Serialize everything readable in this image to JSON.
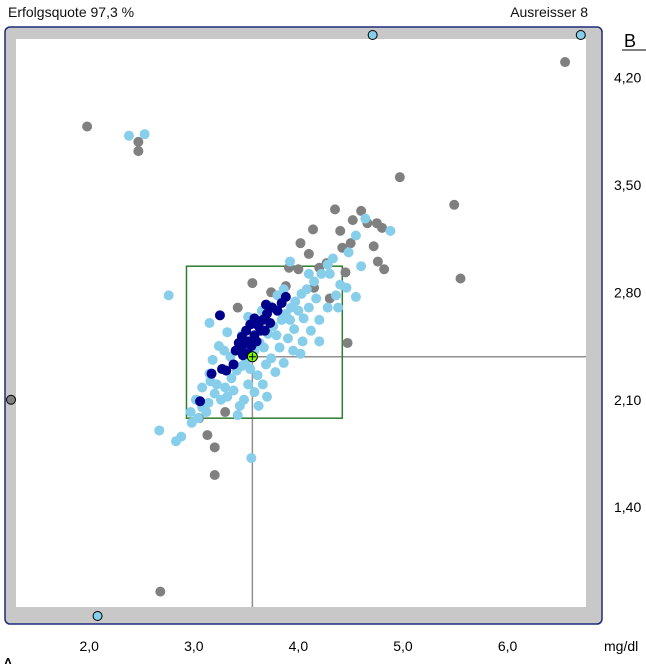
{
  "header": {
    "success_rate": "Erfolgsquote 97,3 %",
    "outliers": "Ausreisser 8"
  },
  "chart_data": {
    "type": "scatter",
    "title": "",
    "xlabel": "A",
    "ylabel": "B",
    "x_unit": "mg/dl",
    "xlim": [
      1.3,
      6.75
    ],
    "ylim": [
      0.75,
      4.45
    ],
    "x_ticks": [
      {
        "v": 2.0,
        "label": "2,0"
      },
      {
        "v": 3.0,
        "label": "3,0"
      },
      {
        "v": 4.0,
        "label": "4,0"
      },
      {
        "v": 5.0,
        "label": "5,0"
      },
      {
        "v": 6.0,
        "label": "6,0"
      }
    ],
    "y_ticks": [
      {
        "v": 4.2,
        "label": "4,20"
      },
      {
        "v": 3.5,
        "label": "3,50"
      },
      {
        "v": 2.8,
        "label": "2,80"
      },
      {
        "v": 2.1,
        "label": "2,10"
      },
      {
        "v": 1.4,
        "label": "1,40"
      }
    ],
    "target": {
      "x": 3.56,
      "y": 2.38
    },
    "acceptance_box": {
      "x": [
        2.93,
        4.42
      ],
      "y": [
        1.98,
        2.97
      ]
    },
    "colors": {
      "frame": "#c8c8c8",
      "frame_border": "#1e2a7a",
      "box": "#2e7d2e",
      "crosshair": "#909090",
      "target": "#7fff00",
      "series_gray": "#808080",
      "series_light": "#87ceeb",
      "series_dark": "#00008b"
    },
    "edge_markers": [
      {
        "side": "top",
        "v": 4.71
      },
      {
        "side": "top",
        "v": 6.7
      },
      {
        "side": "left",
        "v": 2.1
      },
      {
        "side": "bottom",
        "v": 2.08
      }
    ],
    "series": [
      {
        "color": "gray",
        "points": [
          [
            1.98,
            3.88
          ],
          [
            2.47,
            3.78
          ],
          [
            2.47,
            3.72
          ],
          [
            6.55,
            4.3
          ],
          [
            4.97,
            3.55
          ],
          [
            5.49,
            3.37
          ],
          [
            5.55,
            2.89
          ],
          [
            2.68,
            0.85
          ],
          [
            4.47,
            2.47
          ],
          [
            4.02,
            3.12
          ],
          [
            4.14,
            3.21
          ],
          [
            4.35,
            3.34
          ],
          [
            4.1,
            3.05
          ],
          [
            4.4,
            3.2
          ],
          [
            4.42,
            3.09
          ],
          [
            4.6,
            3.33
          ],
          [
            4.75,
            3.25
          ],
          [
            4.72,
            3.1
          ],
          [
            4.8,
            3.22
          ],
          [
            4.76,
            3.0
          ],
          [
            4.82,
            2.95
          ],
          [
            4.45,
            2.93
          ],
          [
            4.27,
            2.99
          ],
          [
            4.5,
            3.12
          ],
          [
            4.66,
            3.25
          ],
          [
            4.52,
            3.27
          ],
          [
            3.91,
            2.96
          ],
          [
            3.88,
            2.84
          ],
          [
            3.74,
            2.8
          ],
          [
            3.56,
            2.86
          ],
          [
            3.42,
            2.7
          ],
          [
            3.13,
            1.87
          ],
          [
            3.2,
            1.79
          ],
          [
            3.2,
            1.61
          ],
          [
            4.15,
            2.83
          ],
          [
            4.2,
            2.96
          ],
          [
            3.05,
            1.98
          ],
          [
            3.3,
            2.02
          ],
          [
            4.0,
            2.95
          ],
          [
            4.3,
            2.76
          ]
        ]
      },
      {
        "color": "light",
        "points": [
          [
            2.38,
            3.82
          ],
          [
            2.53,
            3.83
          ],
          [
            2.67,
            1.9
          ],
          [
            2.83,
            1.83
          ],
          [
            2.88,
            1.86
          ],
          [
            3.55,
            1.72
          ],
          [
            2.97,
            2.02
          ],
          [
            3.08,
            2.05
          ],
          [
            3.14,
            2.08
          ],
          [
            3.2,
            2.14
          ],
          [
            3.22,
            2.2
          ],
          [
            3.3,
            2.18
          ],
          [
            3.32,
            2.12
          ],
          [
            3.36,
            2.24
          ],
          [
            3.41,
            2.29
          ],
          [
            3.46,
            2.32
          ],
          [
            3.5,
            2.35
          ],
          [
            3.54,
            2.3
          ],
          [
            3.58,
            2.42
          ],
          [
            3.63,
            2.47
          ],
          [
            3.67,
            2.44
          ],
          [
            3.71,
            2.53
          ],
          [
            3.76,
            2.58
          ],
          [
            3.79,
            2.52
          ],
          [
            3.84,
            2.62
          ],
          [
            3.88,
            2.66
          ],
          [
            3.93,
            2.7
          ],
          [
            3.97,
            2.74
          ],
          [
            4.03,
            2.79
          ],
          [
            4.08,
            2.82
          ],
          [
            4.15,
            2.87
          ],
          [
            4.22,
            2.92
          ],
          [
            4.28,
            2.98
          ],
          [
            4.33,
            3.02
          ],
          [
            3.12,
            2.02
          ],
          [
            3.26,
            2.1
          ],
          [
            3.38,
            2.16
          ],
          [
            3.44,
            2.06
          ],
          [
            3.52,
            2.2
          ],
          [
            3.61,
            2.26
          ],
          [
            3.69,
            2.33
          ],
          [
            3.74,
            2.37
          ],
          [
            3.82,
            2.44
          ],
          [
            3.9,
            2.5
          ],
          [
            3.96,
            2.56
          ],
          [
            4.05,
            2.63
          ],
          [
            4.1,
            2.7
          ],
          [
            4.17,
            2.76
          ],
          [
            3.02,
            2.1
          ],
          [
            3.16,
            2.22
          ],
          [
            3.28,
            2.3
          ],
          [
            3.35,
            2.38
          ],
          [
            3.44,
            2.44
          ],
          [
            3.29,
            2.42
          ],
          [
            3.46,
            2.52
          ],
          [
            3.6,
            2.6
          ],
          [
            3.65,
            2.68
          ],
          [
            3.73,
            2.71
          ],
          [
            3.8,
            2.78
          ],
          [
            3.86,
            2.82
          ],
          [
            3.18,
            2.36
          ],
          [
            3.24,
            2.45
          ],
          [
            3.15,
            2.27
          ],
          [
            3.08,
            2.18
          ],
          [
            2.98,
            1.95
          ],
          [
            3.04,
            1.98
          ],
          [
            3.48,
            2.1
          ],
          [
            3.58,
            2.15
          ],
          [
            3.66,
            2.2
          ],
          [
            3.78,
            2.28
          ],
          [
            3.86,
            2.34
          ],
          [
            3.95,
            2.42
          ],
          [
            4.04,
            2.48
          ],
          [
            4.12,
            2.55
          ],
          [
            4.2,
            2.62
          ],
          [
            4.28,
            2.7
          ],
          [
            4.36,
            2.78
          ],
          [
            4.4,
            2.85
          ],
          [
            3.92,
            2.62
          ],
          [
            4.0,
            2.68
          ],
          [
            4.38,
            2.7
          ],
          [
            4.2,
            2.48
          ],
          [
            4.02,
            2.4
          ],
          [
            3.7,
            2.12
          ],
          [
            3.62,
            2.06
          ],
          [
            3.42,
            2.0
          ],
          [
            3.92,
            3.0
          ],
          [
            4.1,
            2.92
          ],
          [
            4.55,
            3.17
          ],
          [
            4.64,
            3.28
          ],
          [
            4.3,
            2.92
          ],
          [
            4.48,
            3.06
          ],
          [
            2.76,
            2.78
          ],
          [
            3.15,
            2.6
          ],
          [
            4.6,
            2.97
          ],
          [
            4.88,
            3.2
          ],
          [
            3.32,
            2.54
          ],
          [
            3.52,
            2.64
          ],
          [
            4.46,
            2.83
          ],
          [
            4.55,
            2.77
          ]
        ]
      },
      {
        "color": "dark",
        "points": [
          [
            3.4,
            2.42
          ],
          [
            3.43,
            2.47
          ],
          [
            3.46,
            2.51
          ],
          [
            3.5,
            2.55
          ],
          [
            3.54,
            2.59
          ],
          [
            3.58,
            2.63
          ],
          [
            3.62,
            2.58
          ],
          [
            3.66,
            2.62
          ],
          [
            3.7,
            2.66
          ],
          [
            3.75,
            2.7
          ],
          [
            3.8,
            2.68
          ],
          [
            3.84,
            2.73
          ],
          [
            3.46,
            2.44
          ],
          [
            3.52,
            2.48
          ],
          [
            3.58,
            2.52
          ],
          [
            3.64,
            2.55
          ],
          [
            3.55,
            2.45
          ],
          [
            3.47,
            2.39
          ],
          [
            3.38,
            2.33
          ],
          [
            3.31,
            2.29
          ],
          [
            3.17,
            2.27
          ],
          [
            3.27,
            2.3
          ],
          [
            3.06,
            2.09
          ],
          [
            3.25,
            2.65
          ],
          [
            3.52,
            2.4
          ],
          [
            3.6,
            2.48
          ],
          [
            3.68,
            2.55
          ],
          [
            3.73,
            2.6
          ],
          [
            3.69,
            2.72
          ],
          [
            3.88,
            2.77
          ]
        ]
      }
    ]
  }
}
